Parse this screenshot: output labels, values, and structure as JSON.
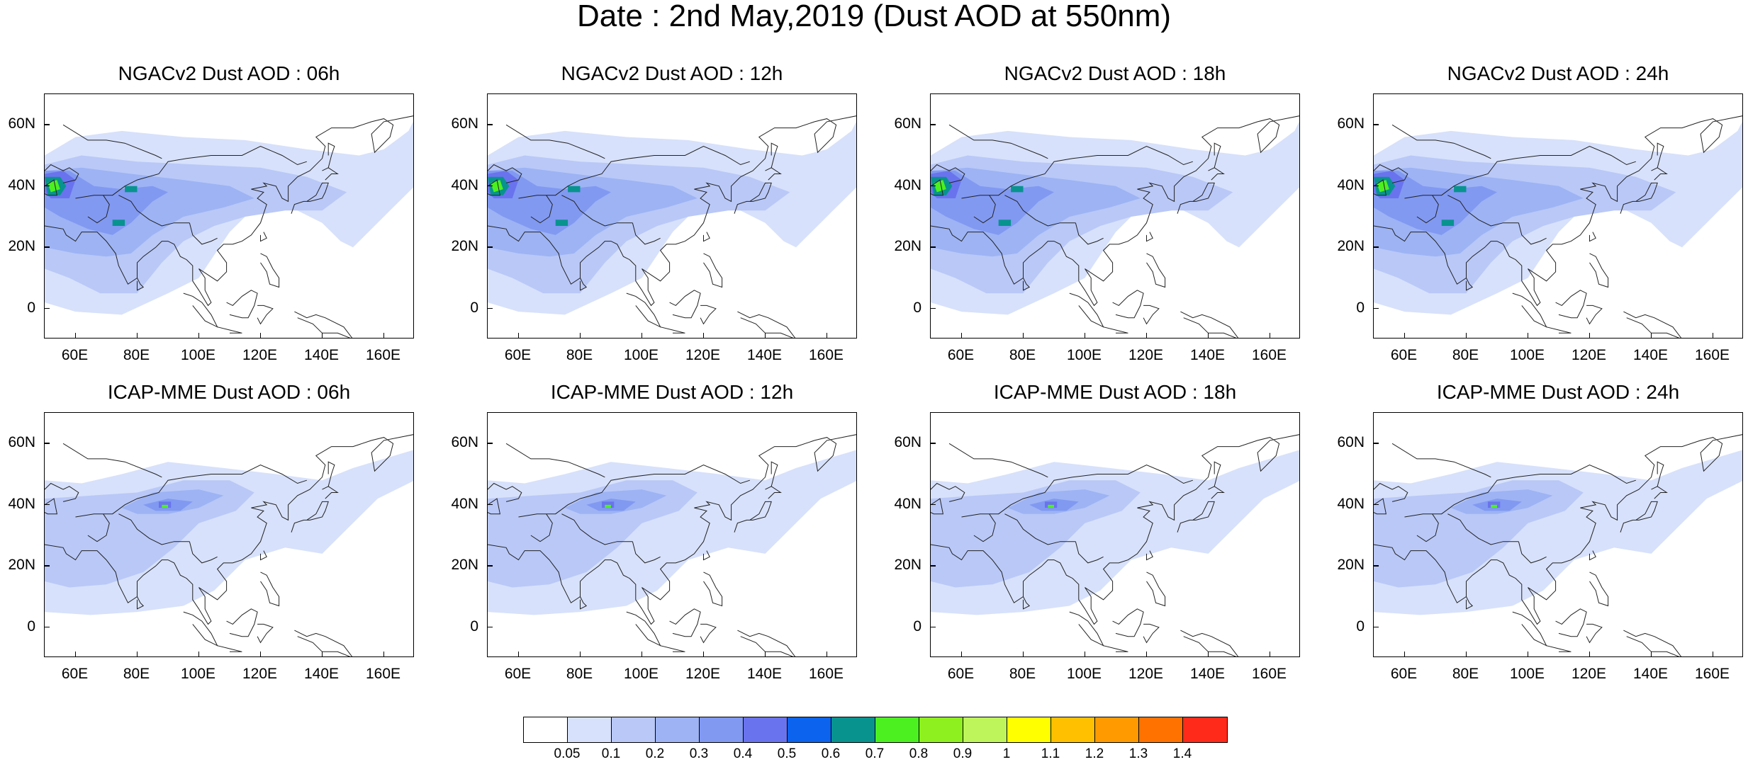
{
  "title": "Date : 2nd May,2019 (Dust AOD at 550nm)",
  "axes": {
    "x_ticks": [
      "60E",
      "80E",
      "100E",
      "120E",
      "140E",
      "160E"
    ],
    "y_ticks": [
      "60N",
      "40N",
      "20N",
      "0"
    ]
  },
  "panels": [
    {
      "title": "NGACv2 Dust AOD : 06h",
      "model": "NGACv2",
      "hour": "06h"
    },
    {
      "title": "NGACv2 Dust AOD : 12h",
      "model": "NGACv2",
      "hour": "12h"
    },
    {
      "title": "NGACv2 Dust AOD : 18h",
      "model": "NGACv2",
      "hour": "18h"
    },
    {
      "title": "NGACv2 Dust AOD : 24h",
      "model": "NGACv2",
      "hour": "24h"
    },
    {
      "title": "ICAP-MME Dust AOD : 06h",
      "model": "ICAP-MME",
      "hour": "06h"
    },
    {
      "title": "ICAP-MME Dust AOD : 12h",
      "model": "ICAP-MME",
      "hour": "12h"
    },
    {
      "title": "ICAP-MME Dust AOD : 18h",
      "model": "ICAP-MME",
      "hour": "18h"
    },
    {
      "title": "ICAP-MME Dust AOD : 24h",
      "model": "ICAP-MME",
      "hour": "24h"
    }
  ],
  "colorbar": {
    "labels": [
      "0.05",
      "0.1",
      "0.2",
      "0.3",
      "0.4",
      "0.5",
      "0.6",
      "0.7",
      "0.8",
      "0.9",
      "1",
      "1.1",
      "1.2",
      "1.3",
      "1.4"
    ],
    "colors": [
      "#ffffff",
      "#d7e1fb",
      "#b9c8f7",
      "#9db3f4",
      "#8199f1",
      "#6a73ee",
      "#0b63ee",
      "#08938f",
      "#4cf020",
      "#8ef01e",
      "#bdf55a",
      "#ffff00",
      "#ffc000",
      "#ff9a00",
      "#ff7200",
      "#ff2a1a"
    ]
  }
}
